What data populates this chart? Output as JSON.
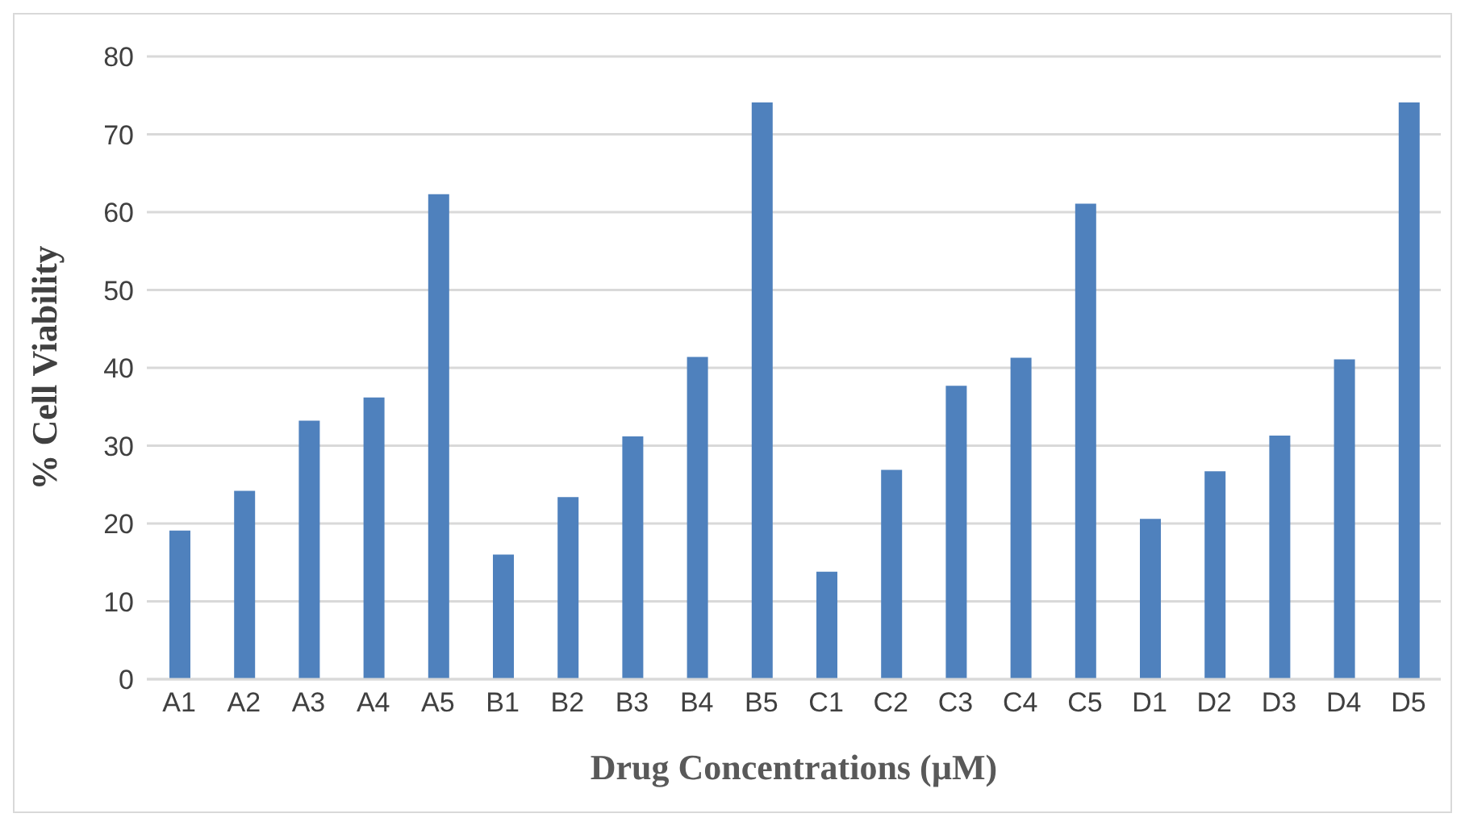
{
  "chart_data": {
    "type": "bar",
    "xlabel": "Drug Concentrations (µM)",
    "ylabel": "% Cell Viability",
    "categories": [
      "A1",
      "A2",
      "A3",
      "A4",
      "A5",
      "B1",
      "B2",
      "B3",
      "B4",
      "B5",
      "C1",
      "C2",
      "C3",
      "C4",
      "C5",
      "D1",
      "D2",
      "D3",
      "D4",
      "D5"
    ],
    "values": [
      19.1,
      24.2,
      33.2,
      36.2,
      62.3,
      16.0,
      23.4,
      31.2,
      41.4,
      74.1,
      13.8,
      26.9,
      37.7,
      41.3,
      61.1,
      20.6,
      26.7,
      31.3,
      41.1,
      74.1
    ],
    "color": "#4f81bd",
    "ylim": [
      0,
      80
    ],
    "yticks": [
      0,
      10,
      20,
      30,
      40,
      50,
      60,
      70,
      80
    ],
    "grid": "y",
    "legend": false
  }
}
